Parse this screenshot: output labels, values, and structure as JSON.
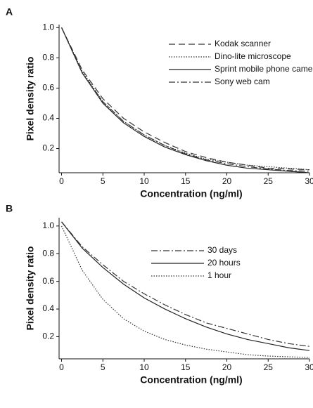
{
  "chart_data": [
    {
      "type": "line",
      "panel_label": "A",
      "x_label": "Concentration (ng/ml)",
      "y_label": "Pixel density ratio",
      "x": [
        0,
        2.5,
        5,
        7.5,
        10,
        12.5,
        15,
        17.5,
        20,
        22.5,
        25,
        27.5,
        30
      ],
      "xlim": [
        -0.3,
        30
      ],
      "xticks": [
        0,
        5,
        10,
        15,
        20,
        25,
        30
      ],
      "ylim": [
        0.04,
        1.02
      ],
      "yticks": [
        0.2,
        0.4,
        0.6,
        0.8,
        {
          "value": 1,
          "label": "1.0"
        }
      ],
      "series": [
        {
          "name": "Kodak scanner",
          "color": "#333333",
          "dash": "dashed",
          "values": [
            1.0,
            0.72,
            0.53,
            0.4,
            0.31,
            0.24,
            0.18,
            0.14,
            0.11,
            0.09,
            0.07,
            0.065,
            0.06
          ]
        },
        {
          "name": "Dino-lite microscope",
          "color": "#333333",
          "dash": "dotted",
          "values": [
            1.0,
            0.71,
            0.51,
            0.38,
            0.29,
            0.22,
            0.17,
            0.13,
            0.11,
            0.09,
            0.08,
            0.07,
            0.06
          ]
        },
        {
          "name": "Sprint mobile phone camera",
          "color": "#222222",
          "dash": "solid",
          "values": [
            1.0,
            0.7,
            0.5,
            0.37,
            0.28,
            0.21,
            0.16,
            0.12,
            0.09,
            0.07,
            0.06,
            0.05,
            0.04
          ]
        },
        {
          "name": "Sony web cam",
          "color": "#333333",
          "dash": "dashdot",
          "values": [
            1.0,
            0.7,
            0.51,
            0.38,
            0.29,
            0.22,
            0.165,
            0.125,
            0.1,
            0.08,
            0.065,
            0.055,
            0.05
          ]
        }
      ]
    },
    {
      "type": "line",
      "panel_label": "B",
      "x_label": "Concentration (ng/ml)",
      "y_label": "Pixel density ratio",
      "x": [
        0,
        2.5,
        5,
        7.5,
        10,
        12.5,
        15,
        17.5,
        20,
        22.5,
        25,
        27.5,
        30
      ],
      "xlim": [
        -0.3,
        30
      ],
      "xticks": [
        0,
        5,
        10,
        15,
        20,
        25,
        30
      ],
      "ylim": [
        0.04,
        1.06
      ],
      "yticks": [
        0.2,
        0.4,
        0.6,
        0.8,
        {
          "value": 1,
          "label": "1.0"
        }
      ],
      "series": [
        {
          "name": "30 days",
          "color": "#333333",
          "dash": "dashdot",
          "values": [
            1.03,
            0.85,
            0.72,
            0.6,
            0.51,
            0.43,
            0.36,
            0.3,
            0.26,
            0.22,
            0.18,
            0.15,
            0.13
          ]
        },
        {
          "name": "20 hours",
          "color": "#222222",
          "dash": "solid",
          "values": [
            1.03,
            0.84,
            0.7,
            0.58,
            0.48,
            0.4,
            0.33,
            0.27,
            0.22,
            0.18,
            0.15,
            0.12,
            0.1
          ]
        },
        {
          "name": "1 hour",
          "color": "#333333",
          "dash": "dotted",
          "values": [
            1.0,
            0.68,
            0.47,
            0.33,
            0.24,
            0.18,
            0.14,
            0.11,
            0.09,
            0.07,
            0.06,
            0.055,
            0.05
          ]
        }
      ]
    }
  ]
}
